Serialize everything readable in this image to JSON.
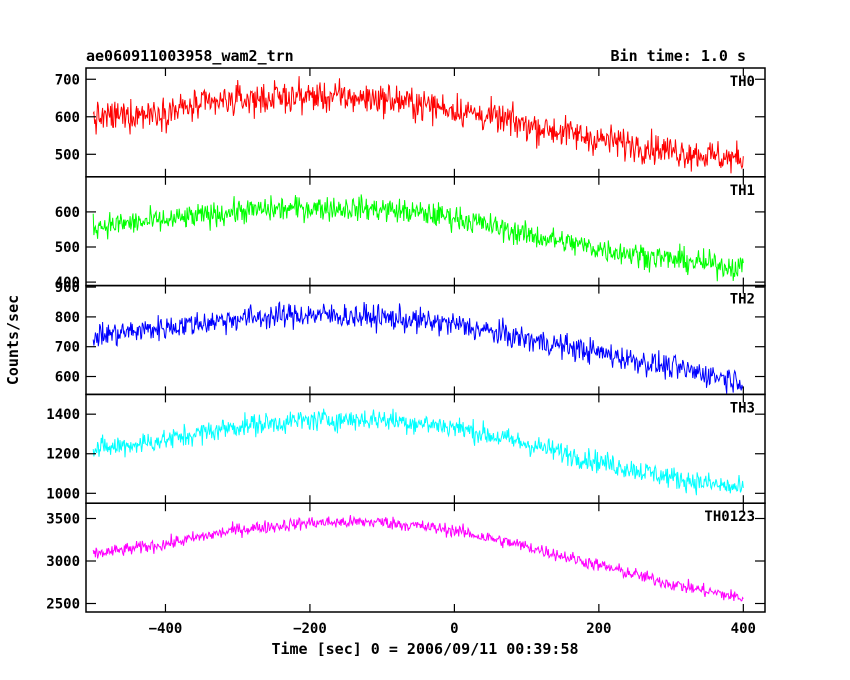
{
  "header": {
    "title": "ae060911003958_wam2_trn",
    "bin_time": "Bin time: 1.0 s"
  },
  "chart_data": {
    "type": "line",
    "title": "ae060911003958_wam2_trn",
    "xlabel": "Time [sec] 0 = 2006/09/11 00:39:58",
    "ylabel": "Counts/sec",
    "xlim": [
      -510,
      430
    ],
    "x_ticks": [
      -400,
      -200,
      0,
      200,
      400
    ],
    "x_tick_labels": [
      "−400",
      "−200",
      "0",
      "200",
      "400"
    ],
    "x_range": [
      -500,
      400
    ],
    "panels": [
      {
        "label": "TH0",
        "color": "#ff0000",
        "ylim": [
          440,
          730
        ],
        "y_ticks": [
          500,
          600,
          700
        ],
        "trend": [
          [
            -500,
            595
          ],
          [
            -400,
            615
          ],
          [
            -300,
            645
          ],
          [
            -200,
            655
          ],
          [
            -100,
            648
          ],
          [
            0,
            620
          ],
          [
            100,
            578
          ],
          [
            200,
            540
          ],
          [
            300,
            510
          ],
          [
            400,
            485
          ]
        ],
        "noise": 30
      },
      {
        "label": "TH1",
        "color": "#00ff00",
        "ylim": [
          390,
          700
        ],
        "y_ticks": [
          400,
          500,
          600
        ],
        "trend": [
          [
            -500,
            560
          ],
          [
            -400,
            575
          ],
          [
            -300,
            602
          ],
          [
            -200,
            612
          ],
          [
            -100,
            608
          ],
          [
            0,
            585
          ],
          [
            100,
            535
          ],
          [
            200,
            495
          ],
          [
            300,
            465
          ],
          [
            400,
            440
          ]
        ],
        "noise": 25
      },
      {
        "label": "TH2",
        "color": "#0000ff",
        "ylim": [
          540,
          905
        ],
        "y_ticks": [
          600,
          700,
          800,
          900
        ],
        "trend": [
          [
            -500,
            735
          ],
          [
            -400,
            765
          ],
          [
            -300,
            795
          ],
          [
            -200,
            808
          ],
          [
            -100,
            798
          ],
          [
            0,
            775
          ],
          [
            100,
            725
          ],
          [
            200,
            680
          ],
          [
            300,
            630
          ],
          [
            400,
            585
          ]
        ],
        "noise": 30
      },
      {
        "label": "TH3",
        "color": "#00ffff",
        "ylim": [
          950,
          1500
        ],
        "y_ticks": [
          1000,
          1200,
          1400
        ],
        "trend": [
          [
            -500,
            1220
          ],
          [
            -400,
            1270
          ],
          [
            -300,
            1340
          ],
          [
            -200,
            1370
          ],
          [
            -100,
            1375
          ],
          [
            0,
            1335
          ],
          [
            100,
            1250
          ],
          [
            200,
            1160
          ],
          [
            300,
            1080
          ],
          [
            400,
            1020
          ]
        ],
        "noise": 40
      },
      {
        "label": "TH0123",
        "color": "#ff00ff",
        "ylim": [
          2400,
          3680
        ],
        "y_ticks": [
          2500,
          3000,
          3500
        ],
        "trend": [
          [
            -500,
            3080
          ],
          [
            -400,
            3200
          ],
          [
            -300,
            3370
          ],
          [
            -200,
            3450
          ],
          [
            -100,
            3460
          ],
          [
            0,
            3360
          ],
          [
            100,
            3170
          ],
          [
            200,
            2950
          ],
          [
            300,
            2730
          ],
          [
            400,
            2560
          ]
        ],
        "noise": 55
      }
    ]
  }
}
